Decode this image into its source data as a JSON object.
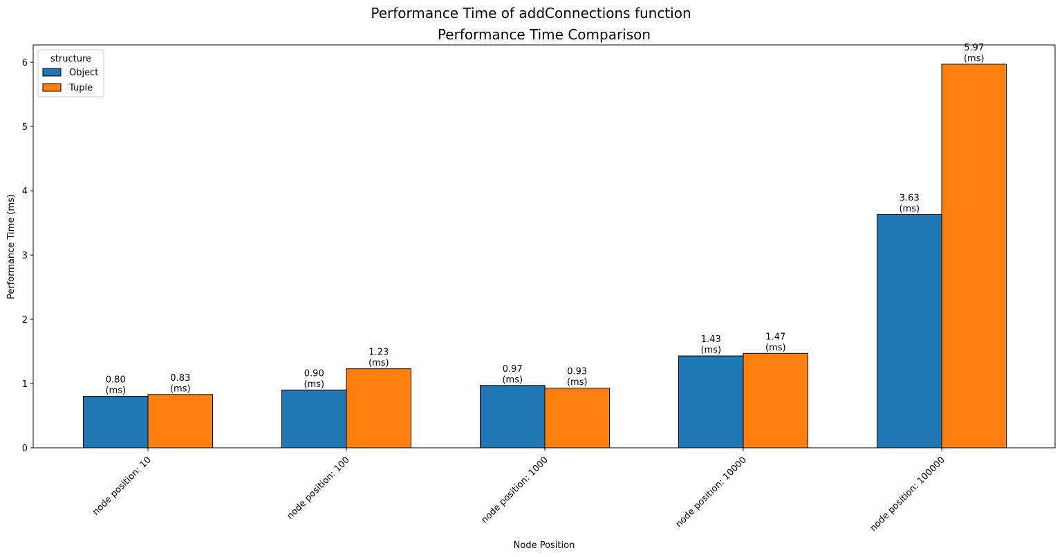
{
  "figure": {
    "suptitle": "Performance Time of addConnections function"
  },
  "chart_data": {
    "type": "bar",
    "title": "Performance Time Comparison",
    "xlabel": "Node Position",
    "ylabel": "Performance Time (ms)",
    "categories": [
      "node position: 10",
      "node position: 100",
      "node position: 1000",
      "node position: 10000",
      "node position: 100000"
    ],
    "series": [
      {
        "name": "Object",
        "color": "#1f77b4",
        "values": [
          0.8,
          0.9,
          0.97,
          1.43,
          3.63
        ],
        "labels": [
          "0.80\n(ms)",
          "0.90\n(ms)",
          "0.97\n(ms)",
          "1.43\n(ms)",
          "3.63\n(ms)"
        ]
      },
      {
        "name": "Tuple",
        "color": "#ff7f0e",
        "values": [
          0.83,
          1.23,
          0.93,
          1.47,
          5.97
        ],
        "labels": [
          "0.83\n(ms)",
          "1.23\n(ms)",
          "0.93\n(ms)",
          "1.47\n(ms)",
          "5.97\n(ms)"
        ]
      }
    ],
    "ylim": [
      0,
      6.27
    ],
    "yticks": [
      "0",
      "1",
      "2",
      "3",
      "4",
      "5",
      "6"
    ],
    "grid": false,
    "legend": {
      "title": "structure",
      "placement": "top-left"
    },
    "xtick_rotation": "45 degrees"
  }
}
